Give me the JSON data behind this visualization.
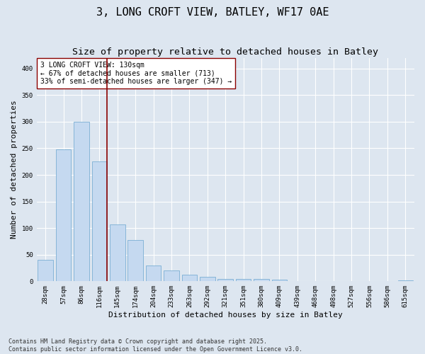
{
  "title": "3, LONG CROFT VIEW, BATLEY, WF17 0AE",
  "subtitle": "Size of property relative to detached houses in Batley",
  "xlabel": "Distribution of detached houses by size in Batley",
  "ylabel": "Number of detached properties",
  "categories": [
    "28sqm",
    "57sqm",
    "86sqm",
    "116sqm",
    "145sqm",
    "174sqm",
    "204sqm",
    "233sqm",
    "263sqm",
    "292sqm",
    "321sqm",
    "351sqm",
    "380sqm",
    "409sqm",
    "439sqm",
    "468sqm",
    "498sqm",
    "527sqm",
    "556sqm",
    "586sqm",
    "615sqm"
  ],
  "values": [
    40,
    248,
    300,
    225,
    107,
    77,
    30,
    20,
    12,
    8,
    5,
    4,
    4,
    3,
    0,
    0,
    0,
    0,
    0,
    0,
    2
  ],
  "bar_color": "#c5d9f0",
  "bar_edgecolor": "#7bafd4",
  "vline_color": "#8b0000",
  "annotation_text": "3 LONG CROFT VIEW: 130sqm\n← 67% of detached houses are smaller (713)\n33% of semi-detached houses are larger (347) →",
  "annotation_box_color": "#ffffff",
  "annotation_box_edgecolor": "#8b0000",
  "ylim": [
    0,
    420
  ],
  "background_color": "#dde6f0",
  "plot_background": "#dde6f0",
  "grid_color": "#ffffff",
  "footer": "Contains HM Land Registry data © Crown copyright and database right 2025.\nContains public sector information licensed under the Open Government Licence v3.0.",
  "title_fontsize": 11,
  "subtitle_fontsize": 9.5,
  "ylabel_fontsize": 8,
  "xlabel_fontsize": 8,
  "tick_fontsize": 6.5,
  "annotation_fontsize": 7,
  "footer_fontsize": 6
}
